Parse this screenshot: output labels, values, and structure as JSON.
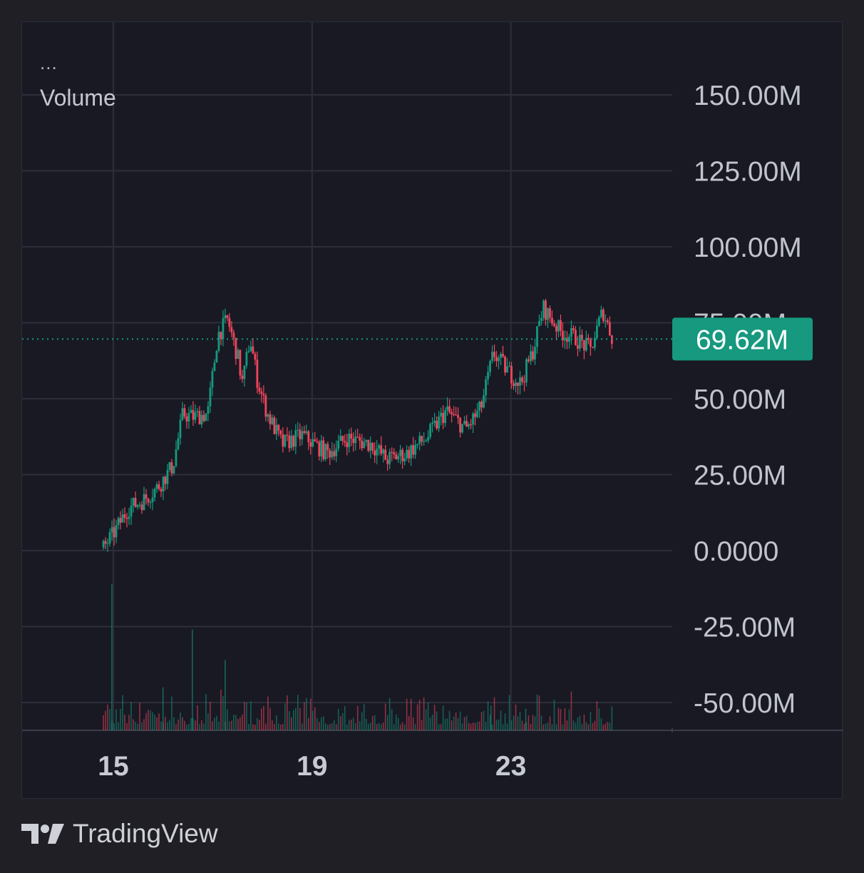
{
  "legend": {
    "dots": "...",
    "label": "Volume"
  },
  "price_badge": {
    "value": "69.62M",
    "color": "#16997e"
  },
  "brand": {
    "name": "TradingView"
  },
  "colors": {
    "up": "#16997e",
    "down": "#f2455c",
    "grid": "#2c2e3a",
    "text": "#c2c4cc"
  },
  "chart_data": {
    "type": "candlestick",
    "title": "",
    "ylabel": "",
    "xlabel": "",
    "ylim": [
      -58000000,
      155000000
    ],
    "y_ticks": [
      150000000,
      125000000,
      100000000,
      75000000,
      50000000,
      25000000,
      0,
      -25000000,
      -50000000
    ],
    "y_tick_labels": [
      "150.00M",
      "125.00M",
      "100.00M",
      "75.00M",
      "50.00M",
      "25.00M",
      "0.0000",
      "-25.00M",
      "-50.00M"
    ],
    "x_ticks": [
      {
        "label": "15",
        "day": 15
      },
      {
        "label": "19",
        "day": 19
      },
      {
        "label": "23",
        "day": 23
      }
    ],
    "xlim": [
      13.2,
      26.3
    ],
    "last_value": 69620000,
    "grid": true,
    "series": [
      {
        "name": "Volume",
        "points": [
          [
            14.8,
            1.0
          ],
          [
            15.0,
            5.5
          ],
          [
            15.3,
            14.0
          ],
          [
            15.6,
            16.5
          ],
          [
            15.9,
            21.0
          ],
          [
            16.2,
            28.0
          ],
          [
            16.4,
            45.0
          ],
          [
            16.6,
            44.0
          ],
          [
            16.9,
            45.0
          ],
          [
            17.1,
            71.0
          ],
          [
            17.3,
            76.0
          ],
          [
            17.5,
            64.0
          ],
          [
            17.6,
            55.0
          ],
          [
            17.75,
            70.0
          ],
          [
            17.9,
            56.0
          ],
          [
            18.1,
            45.0
          ],
          [
            18.4,
            35.0
          ],
          [
            18.8,
            38.0
          ],
          [
            19.3,
            32.0
          ],
          [
            19.7,
            37.0
          ],
          [
            20.2,
            35.0
          ],
          [
            20.5,
            30.0
          ],
          [
            20.9,
            32.0
          ],
          [
            21.3,
            37.0
          ],
          [
            21.7,
            46.0
          ],
          [
            22.1,
            40.0
          ],
          [
            22.4,
            47.0
          ],
          [
            22.65,
            65.0
          ],
          [
            23.0,
            58.0
          ],
          [
            23.2,
            55.0
          ],
          [
            23.45,
            66.0
          ],
          [
            23.65,
            80.0
          ],
          [
            24.0,
            72.0
          ],
          [
            24.3,
            70.0
          ],
          [
            24.6,
            66.0
          ],
          [
            24.85,
            79.0
          ],
          [
            25.05,
            69.62
          ]
        ]
      }
    ],
    "volume_bars_min": -58000000,
    "volume_spikes": [
      {
        "day": 14.97,
        "value": -11.0
      },
      {
        "day": 16.59,
        "value": -26.0
      },
      {
        "day": 17.25,
        "value": -36.0
      },
      {
        "day": 16.0,
        "value": -45.0
      },
      {
        "day": 22.6,
        "value": -51.0
      },
      {
        "day": 23.3,
        "value": -52.0
      }
    ]
  }
}
